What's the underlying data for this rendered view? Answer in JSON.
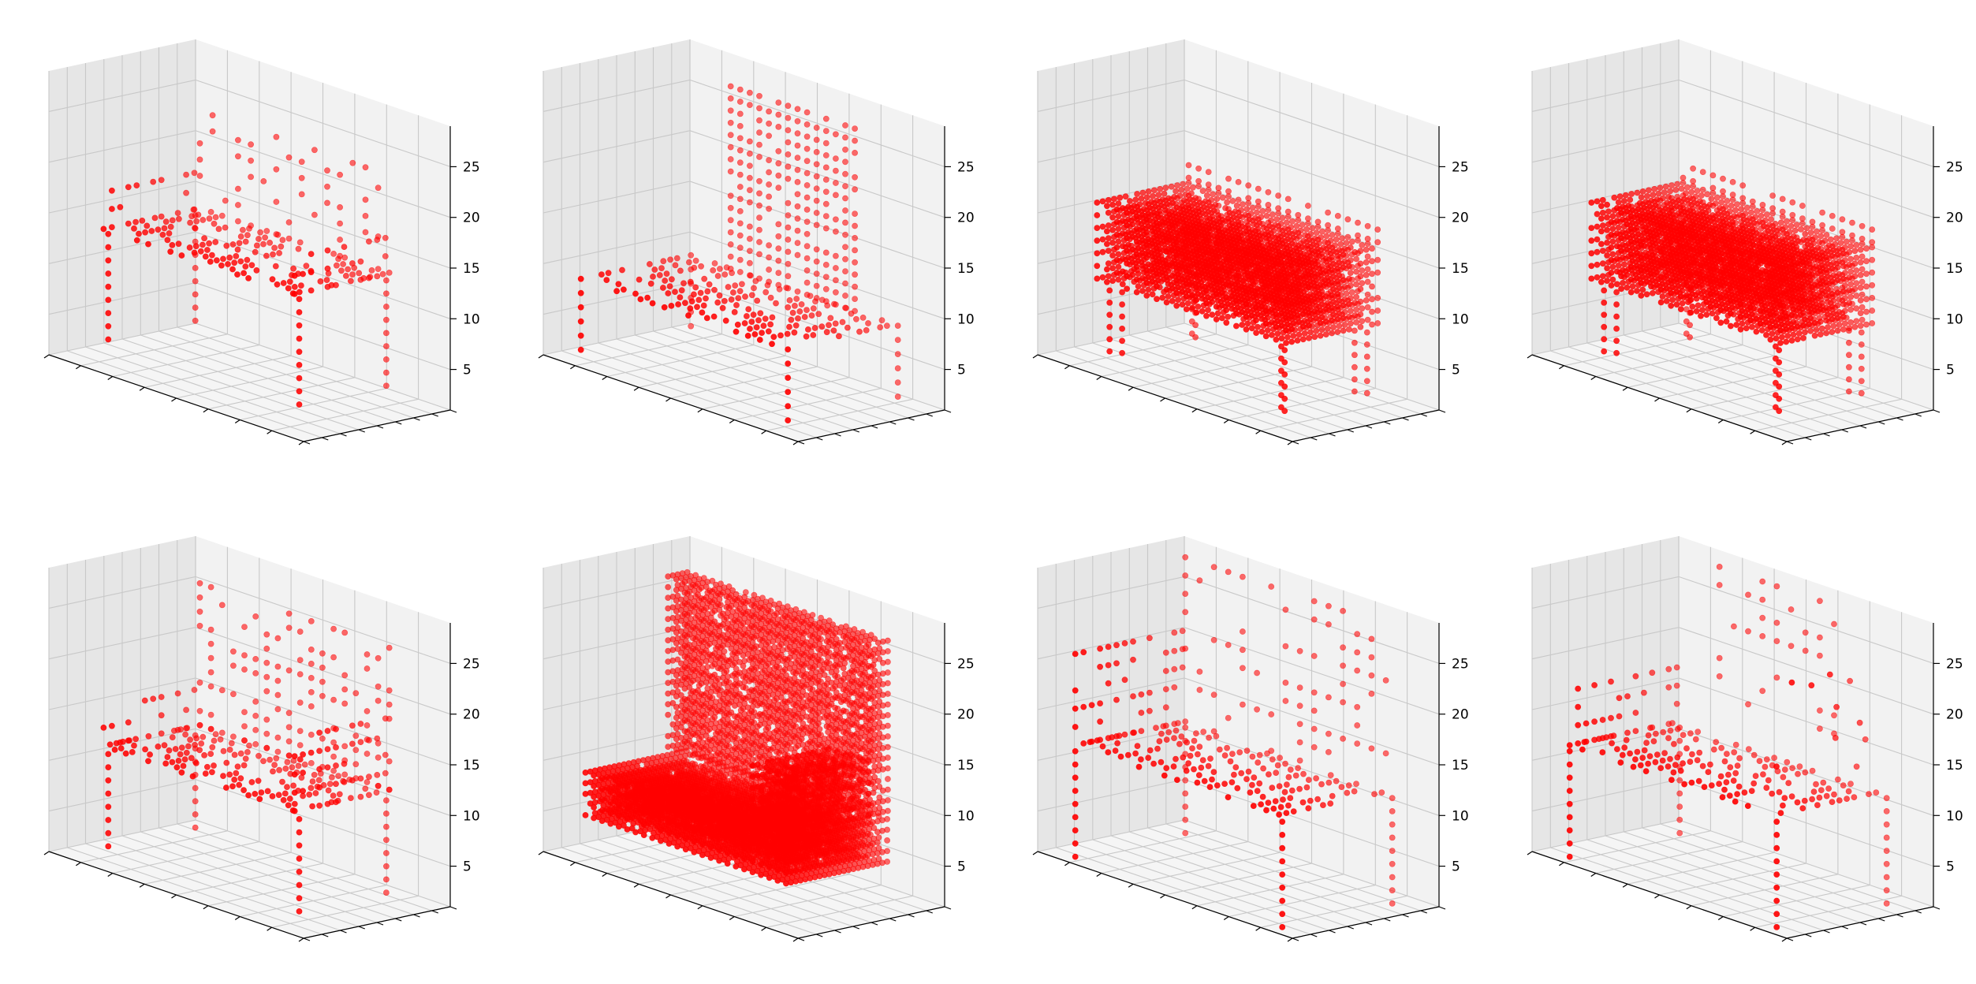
{
  "figure": {
    "rows": 2,
    "cols": 4,
    "point_color": "#ff0000",
    "pane_colors": {
      "back": "#f2f2f2",
      "side": "#e6e6e6",
      "floor": "#f5f5f5"
    },
    "grid_color": "#c8c8c8"
  },
  "chart_data": [
    {
      "type": "scatter",
      "projection": "3d",
      "subject": "chair-open-frame",
      "xlim": [
        0,
        32
      ],
      "ylim": [
        0,
        32
      ],
      "zlim": [
        1,
        29
      ],
      "zticks": [
        5,
        10,
        15,
        20,
        25
      ],
      "tick_labels": [
        "5",
        "10",
        "15",
        "20",
        "25"
      ],
      "grid": true,
      "xlabel": "",
      "ylabel": "",
      "zlabel": ""
    },
    {
      "type": "scatter",
      "projection": "3d",
      "subject": "chair-tall-back",
      "xlim": [
        0,
        32
      ],
      "ylim": [
        0,
        32
      ],
      "zlim": [
        1,
        29
      ],
      "zticks": [
        5,
        10,
        15,
        20,
        25
      ],
      "tick_labels": [
        "5",
        "10",
        "15",
        "20",
        "25"
      ],
      "grid": true,
      "xlabel": "",
      "ylabel": "",
      "zlabel": ""
    },
    {
      "type": "scatter",
      "projection": "3d",
      "subject": "sofa-solid",
      "xlim": [
        0,
        32
      ],
      "ylim": [
        0,
        32
      ],
      "zlim": [
        1,
        29
      ],
      "zticks": [
        5,
        10,
        15,
        20,
        25
      ],
      "tick_labels": [
        "5",
        "10",
        "15",
        "20",
        "25"
      ],
      "grid": true,
      "xlabel": "",
      "ylabel": "",
      "zlabel": ""
    },
    {
      "type": "scatter",
      "projection": "3d",
      "subject": "sofa-solid",
      "xlim": [
        0,
        32
      ],
      "ylim": [
        0,
        32
      ],
      "zlim": [
        1,
        29
      ],
      "zticks": [
        5,
        10,
        15,
        20,
        25
      ],
      "tick_labels": [
        "5",
        "10",
        "15",
        "20",
        "25"
      ],
      "grid": true,
      "xlabel": "",
      "ylabel": "",
      "zlabel": ""
    },
    {
      "type": "scatter",
      "projection": "3d",
      "subject": "chair-open-frame-2",
      "xlim": [
        0,
        32
      ],
      "ylim": [
        0,
        32
      ],
      "zlim": [
        1,
        29
      ],
      "zticks": [
        5,
        10,
        15,
        20,
        25
      ],
      "tick_labels": [
        "5",
        "10",
        "15",
        "20",
        "25"
      ],
      "grid": true,
      "xlabel": "",
      "ylabel": "",
      "zlabel": ""
    },
    {
      "type": "scatter",
      "projection": "3d",
      "subject": "lounge-chair-solid",
      "xlim": [
        0,
        32
      ],
      "ylim": [
        0,
        32
      ],
      "zlim": [
        1,
        29
      ],
      "zticks": [
        5,
        10,
        15,
        20,
        25
      ],
      "tick_labels": [
        "5",
        "10",
        "15",
        "20",
        "25"
      ],
      "grid": true,
      "xlabel": "",
      "ylabel": "",
      "zlabel": ""
    },
    {
      "type": "scatter",
      "projection": "3d",
      "subject": "chair-sparse-back",
      "xlim": [
        0,
        32
      ],
      "ylim": [
        0,
        32
      ],
      "zlim": [
        1,
        29
      ],
      "zticks": [
        5,
        10,
        15,
        20,
        25
      ],
      "tick_labels": [
        "5",
        "10",
        "15",
        "20",
        "25"
      ],
      "grid": true,
      "xlabel": "",
      "ylabel": "",
      "zlabel": ""
    },
    {
      "type": "scatter",
      "projection": "3d",
      "subject": "chair-sparse-back-2",
      "xlim": [
        0,
        32
      ],
      "ylim": [
        0,
        32
      ],
      "zlim": [
        1,
        29
      ],
      "zticks": [
        5,
        10,
        15,
        20,
        25
      ],
      "tick_labels": [
        "5",
        "10",
        "15",
        "20",
        "25"
      ],
      "grid": true,
      "xlabel": "",
      "ylabel": "",
      "zlabel": ""
    }
  ]
}
